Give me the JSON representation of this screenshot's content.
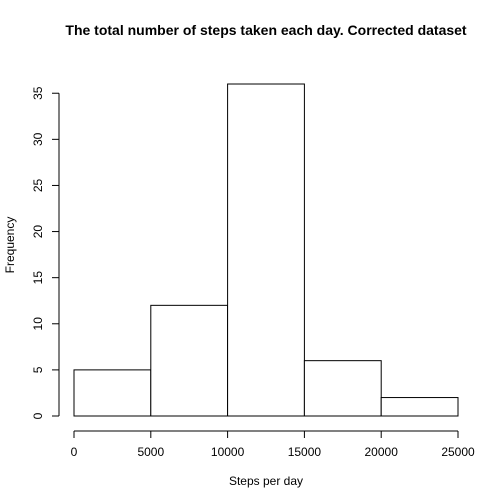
{
  "chart_data": {
    "type": "bar",
    "title": "The total number of steps taken each day. Corrected dataset",
    "xlabel": "Steps per day",
    "ylabel": "Frequency",
    "bins": [
      {
        "from": 0,
        "to": 5000,
        "count": 5
      },
      {
        "from": 5000,
        "to": 10000,
        "count": 12
      },
      {
        "from": 10000,
        "to": 15000,
        "count": 36
      },
      {
        "from": 15000,
        "to": 20000,
        "count": 6
      },
      {
        "from": 20000,
        "to": 25000,
        "count": 2
      }
    ],
    "x_ticks": [
      "0",
      "5000",
      "10000",
      "15000",
      "20000",
      "25000"
    ],
    "y_ticks": [
      "0",
      "5",
      "10",
      "15",
      "20",
      "25",
      "30",
      "35"
    ],
    "xlim": [
      0,
      25000
    ],
    "ylim": [
      0,
      36
    ],
    "grid": false,
    "legend": "none"
  }
}
